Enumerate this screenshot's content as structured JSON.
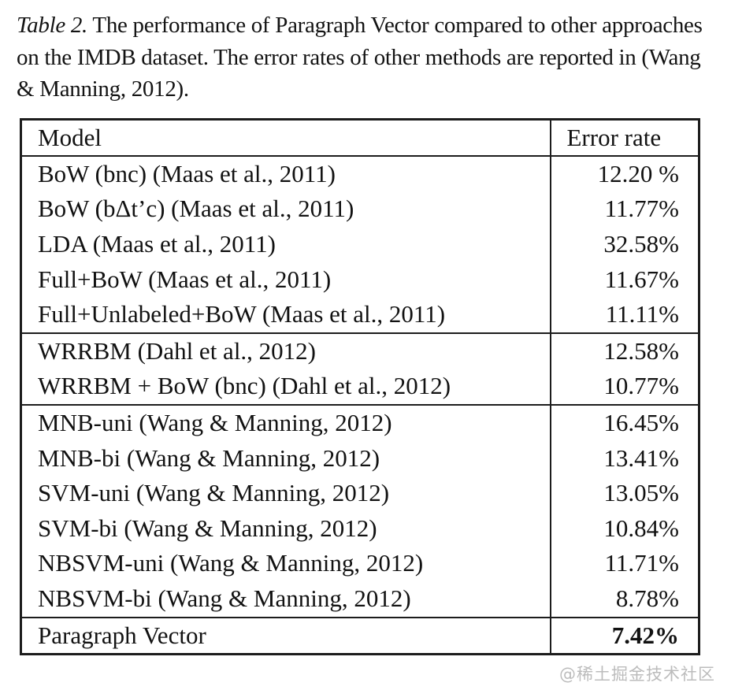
{
  "caption": {
    "label": "Table 2.",
    "text": " The performance of Paragraph Vector compared to other approaches on the IMDB dataset. The error rates of other methods are reported in (Wang & Manning, 2012)."
  },
  "table": {
    "headers": [
      "Model",
      "Error rate"
    ],
    "groups": [
      {
        "name": "maas-2011-methods",
        "rows": [
          {
            "model": "BoW (bnc) (Maas et al., 2011)",
            "error": "12.20 %"
          },
          {
            "model": "BoW (bΔt’c) (Maas et al., 2011)",
            "error": "11.77%"
          },
          {
            "model": "LDA (Maas et al., 2011)",
            "error": "32.58%"
          },
          {
            "model": "Full+BoW (Maas et al., 2011)",
            "error": "11.67%"
          },
          {
            "model": "Full+Unlabeled+BoW (Maas et al., 2011)",
            "error": "11.11%"
          }
        ]
      },
      {
        "name": "dahl-2012-methods",
        "rows": [
          {
            "model": "WRRBM (Dahl et al., 2012)",
            "error": "12.58%"
          },
          {
            "model": "WRRBM + BoW (bnc) (Dahl et al., 2012)",
            "error": "10.77%"
          }
        ]
      },
      {
        "name": "wang-manning-2012-methods",
        "rows": [
          {
            "model": "MNB-uni (Wang & Manning, 2012)",
            "error": "16.45%"
          },
          {
            "model": "MNB-bi (Wang & Manning, 2012)",
            "error": "13.41%"
          },
          {
            "model": "SVM-uni (Wang & Manning, 2012)",
            "error": "13.05%"
          },
          {
            "model": "SVM-bi (Wang & Manning, 2012)",
            "error": "10.84%"
          },
          {
            "model": "NBSVM-uni (Wang & Manning, 2012)",
            "error": "11.71%"
          },
          {
            "model": "NBSVM-bi (Wang & Manning, 2012)",
            "error": "8.78%"
          }
        ]
      },
      {
        "name": "paragraph-vector",
        "rows": [
          {
            "model": "Paragraph Vector",
            "error": "7.42%",
            "bold": true
          }
        ]
      }
    ]
  },
  "watermark": "@稀土掘金技术社区",
  "colors": {
    "text": "#121212",
    "background": "#ffffff",
    "border": "#1c1c1c",
    "watermark": "#bcbcbc"
  }
}
